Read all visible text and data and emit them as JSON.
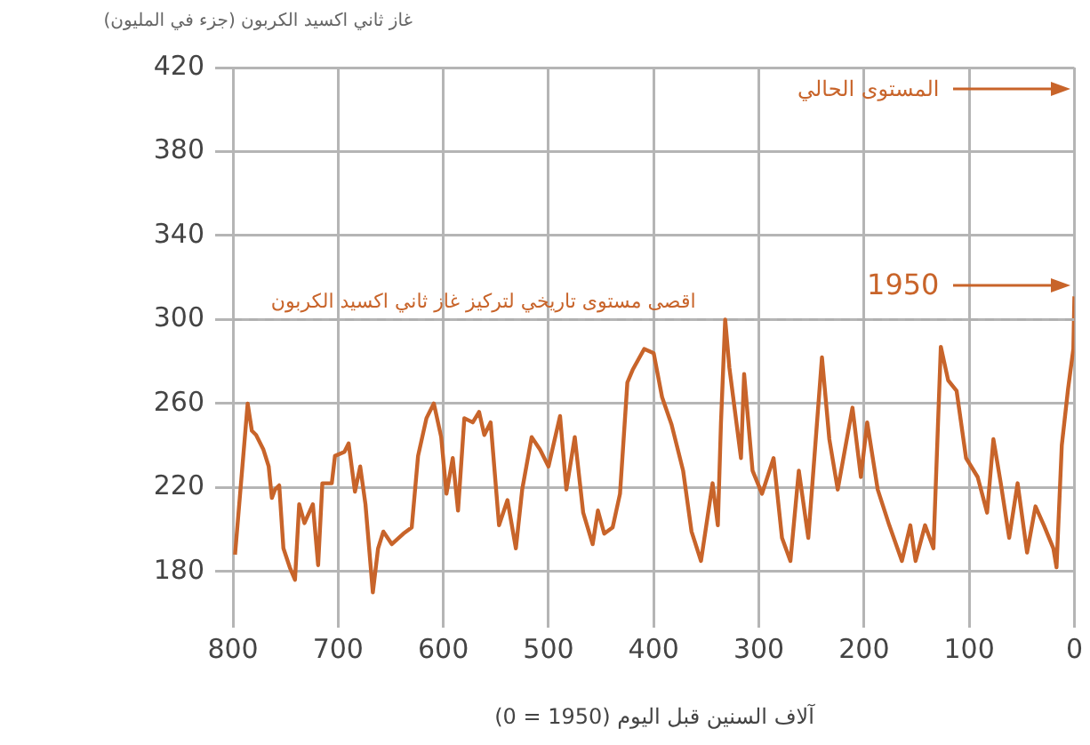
{
  "chart_data": {
    "type": "line",
    "ylabel": "غاز ثاني اكسيد الكربون (جزء في المليون)",
    "xlabel": "آلاف السنين قبل اليوم (0 = 1950)",
    "xlim": [
      800,
      0
    ],
    "xticks": [
      800,
      700,
      600,
      500,
      400,
      300,
      200,
      100,
      0
    ],
    "ylim": [
      160,
      420
    ],
    "yticks": [
      180,
      220,
      260,
      300,
      340,
      380,
      420
    ],
    "grid": true,
    "legend": false,
    "marker": "none",
    "line_style": "solid",
    "series": [
      {
        "color": "#c8642a",
        "x": [
          798,
          786,
          782,
          778,
          771,
          766,
          763,
          760,
          756,
          752,
          746,
          741,
          737,
          732,
          724,
          719,
          715,
          706,
          703,
          694,
          690,
          684,
          679,
          674,
          667,
          662,
          657,
          649,
          638,
          630,
          624,
          616,
          609,
          602,
          597,
          591,
          586,
          580,
          572,
          566,
          561,
          555,
          547,
          539,
          531,
          525,
          516,
          508,
          500,
          489,
          483,
          475,
          467,
          458,
          453,
          447,
          439,
          432,
          425,
          420,
          409,
          400,
          392,
          383,
          372,
          364,
          355,
          344,
          339,
          336,
          332,
          328,
          317,
          314,
          306,
          297,
          286,
          278,
          270,
          262,
          253,
          240,
          233,
          225,
          211,
          203,
          197,
          187,
          176,
          164,
          156,
          151,
          142,
          134,
          127,
          120,
          112,
          103,
          92,
          83,
          77,
          70,
          62,
          54,
          45,
          37,
          29,
          20,
          17,
          12,
          6,
          1,
          0
        ],
        "values": [
          188,
          260,
          247,
          245,
          238,
          230,
          215,
          219,
          221,
          191,
          182,
          176,
          212,
          203,
          212,
          183,
          222,
          222,
          235,
          237,
          241,
          218,
          230,
          212,
          170,
          191,
          199,
          193,
          198,
          201,
          235,
          253,
          260,
          244,
          217,
          234,
          209,
          253,
          251,
          256,
          245,
          251,
          202,
          214,
          191,
          219,
          244,
          238,
          230,
          254,
          219,
          244,
          208,
          193,
          209,
          198,
          201,
          217,
          270,
          276,
          286,
          284,
          263,
          250,
          228,
          199,
          185,
          222,
          202,
          251,
          300,
          277,
          234,
          274,
          228,
          217,
          234,
          196,
          185,
          228,
          196,
          282,
          243,
          219,
          258,
          225,
          251,
          219,
          202,
          185,
          202,
          185,
          202,
          191,
          287,
          271,
          266,
          234,
          225,
          208,
          243,
          222,
          196,
          222,
          189,
          211,
          202,
          191,
          182,
          240,
          267,
          286,
          311
        ]
      }
    ],
    "ref_lines": [
      {
        "axis": "y",
        "value": 300,
        "label": "اقصى مستوى تاريخي لتركيز غاز ثاني اكسيد الكربون",
        "color": "#b0b0b0",
        "line_style": "dashed"
      }
    ],
    "annotations": [
      "المستوى الحالي",
      "1950"
    ]
  }
}
